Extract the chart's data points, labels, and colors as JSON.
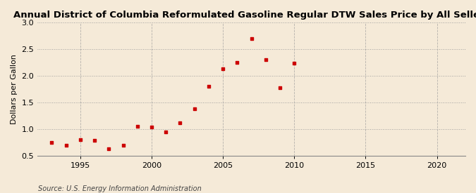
{
  "title": "Annual District of Columbia Reformulated Gasoline Regular DTW Sales Price by All Sellers",
  "ylabel": "Dollars per Gallon",
  "source": "Source: U.S. Energy Information Administration",
  "years": [
    1993,
    1994,
    1995,
    1996,
    1997,
    1998,
    1999,
    2000,
    2001,
    2002,
    2003,
    2004,
    2005,
    2006,
    2007,
    2008,
    2009,
    2010
  ],
  "values": [
    0.75,
    0.7,
    0.8,
    0.78,
    0.63,
    0.7,
    1.05,
    1.03,
    0.94,
    1.11,
    1.38,
    1.8,
    2.13,
    2.25,
    2.7,
    2.3,
    1.77,
    2.23
  ],
  "marker_color": "#cc0000",
  "background_color": "#f5ead8",
  "grid_color": "#999999",
  "xlim": [
    1992,
    2022
  ],
  "ylim": [
    0.5,
    3.0
  ],
  "xticks": [
    1995,
    2000,
    2005,
    2010,
    2015,
    2020
  ],
  "yticks": [
    0.5,
    1.0,
    1.5,
    2.0,
    2.5,
    3.0
  ],
  "title_fontsize": 9.5,
  "label_fontsize": 8,
  "tick_fontsize": 8,
  "source_fontsize": 7
}
